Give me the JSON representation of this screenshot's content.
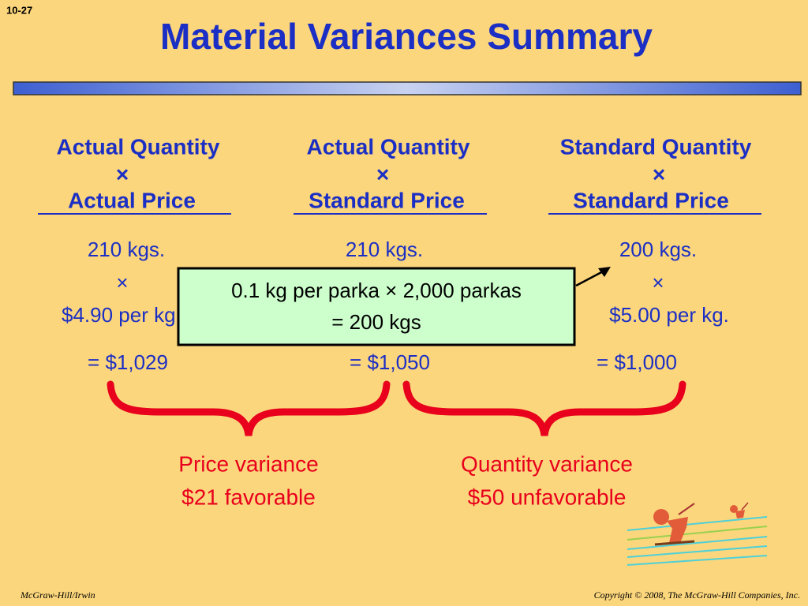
{
  "slide_number": "10-27",
  "title": "Material Variances Summary",
  "columns": [
    {
      "header": [
        "Actual Quantity",
        "×",
        "Actual Price"
      ],
      "lines": [
        "210 kgs.",
        "×",
        "$4.90 per kg."
      ],
      "result": "= $1,029"
    },
    {
      "header": [
        "Actual Quantity",
        "×",
        "Standard Price"
      ],
      "lines": [
        "210 kgs."
      ],
      "result": "= $1,050"
    },
    {
      "header": [
        "Standard Quantity",
        "×",
        "Standard Price"
      ],
      "lines": [
        "200 kgs.",
        "×",
        "$5.00 per kg."
      ],
      "result": "= $1,000"
    }
  ],
  "callout": [
    "0.1 kg per parka × 2,000 parkas",
    "= 200 kgs"
  ],
  "variances": [
    {
      "name": "Price variance",
      "amount": "$21 favorable"
    },
    {
      "name": "Quantity variance",
      "amount": "$50 unfavorable"
    }
  ],
  "footer": {
    "left": "McGraw-Hill/Irwin",
    "right": "Copyright © 2008, The McGraw-Hill Companies, Inc."
  }
}
